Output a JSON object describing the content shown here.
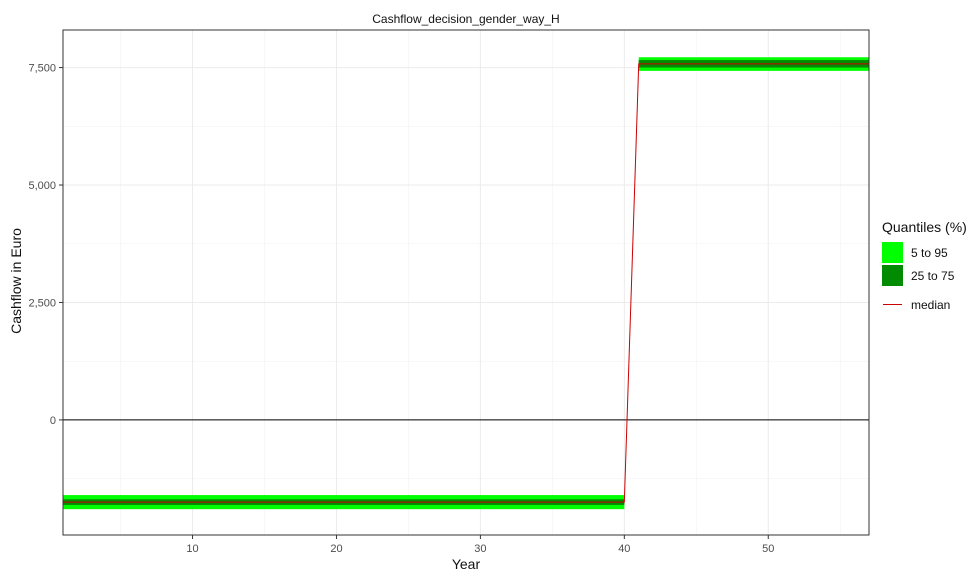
{
  "chart_data": {
    "type": "area",
    "title": "Cashflow_decision_gender_way_H",
    "xlabel": "Year",
    "ylabel": "Cashflow in Euro",
    "xlim": [
      1,
      57
    ],
    "ylim": [
      -2450,
      8300
    ],
    "x_ticks": [
      10,
      20,
      30,
      40,
      50
    ],
    "y_ticks": [
      0,
      2500,
      5000,
      7500
    ],
    "y_tick_labels": [
      "0",
      "2,500",
      "5,000",
      "7,500"
    ],
    "hline": 0,
    "grid": true,
    "legend_position": "right",
    "segments": [
      {
        "x_start": 1,
        "x_end": 40,
        "q05": -1900,
        "q25": -1810,
        "median": -1750,
        "q75": -1690,
        "q95": -1600
      },
      {
        "x_start": 41,
        "x_end": 57,
        "q05": 7430,
        "q25": 7500,
        "median": 7580,
        "q75": 7660,
        "q95": 7720
      }
    ],
    "median_line": {
      "x": [
        1,
        40,
        41,
        57
      ],
      "y": [
        -1750,
        -1750,
        7580,
        7580
      ]
    },
    "legend": {
      "title": "Quantiles (%)",
      "items": [
        {
          "label": "5 to 95",
          "color": "#00ff00"
        },
        {
          "label": "25 to 75",
          "color": "#008b00"
        },
        {
          "label": "median",
          "color": "#cc0000"
        }
      ]
    }
  }
}
